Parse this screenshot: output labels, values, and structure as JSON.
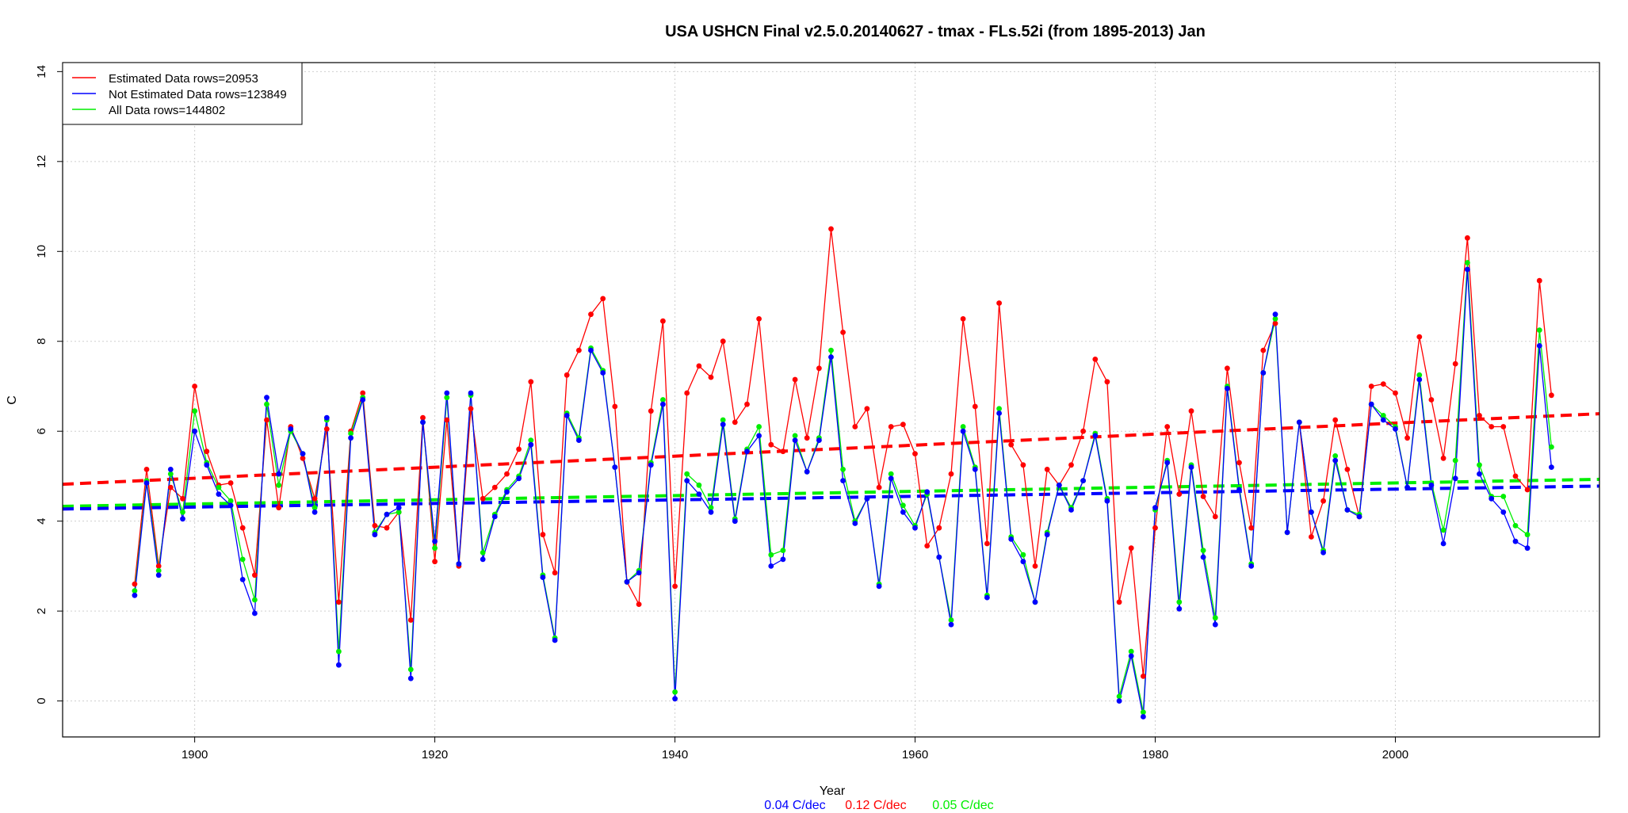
{
  "chart_data": {
    "type": "line",
    "title": "USA USHCN Final v2.5.0.20140627 - tmax - FLs.52i (from 1895-2013) Jan",
    "xlabel": "Year",
    "ylabel": "C",
    "xlim": [
      1889,
      2017
    ],
    "ylim": [
      -0.8,
      14.2
    ],
    "xticks": [
      1900,
      1920,
      1940,
      1960,
      1980,
      2000
    ],
    "yticks": [
      0,
      2,
      4,
      6,
      8,
      10,
      12,
      14
    ],
    "grid": true,
    "legend_position": "top-left",
    "legend": [
      {
        "label": "Estimated Data rows=20953",
        "color": "#ff0000"
      },
      {
        "label": "Not Estimated Data rows=123849",
        "color": "#0000ff"
      },
      {
        "label": "All Data rows=144802",
        "color": "#00ee00"
      }
    ],
    "trend_labels": [
      {
        "text": "0.04 C/dec",
        "color": "#0000ff"
      },
      {
        "text": "0.12 C/dec",
        "color": "#ff0000"
      },
      {
        "text": "0.05 C/dec",
        "color": "#00ee00"
      }
    ],
    "x": [
      1895,
      1896,
      1897,
      1898,
      1899,
      1900,
      1901,
      1902,
      1903,
      1904,
      1905,
      1906,
      1907,
      1908,
      1909,
      1910,
      1911,
      1912,
      1913,
      1914,
      1915,
      1916,
      1917,
      1918,
      1919,
      1920,
      1921,
      1922,
      1923,
      1924,
      1925,
      1926,
      1927,
      1928,
      1929,
      1930,
      1931,
      1932,
      1933,
      1934,
      1935,
      1936,
      1937,
      1938,
      1939,
      1940,
      1941,
      1942,
      1943,
      1944,
      1945,
      1946,
      1947,
      1948,
      1949,
      1950,
      1951,
      1952,
      1953,
      1954,
      1955,
      1956,
      1957,
      1958,
      1959,
      1960,
      1961,
      1962,
      1963,
      1964,
      1965,
      1966,
      1967,
      1968,
      1969,
      1970,
      1971,
      1972,
      1973,
      1974,
      1975,
      1976,
      1977,
      1978,
      1979,
      1980,
      1981,
      1982,
      1983,
      1984,
      1985,
      1986,
      1987,
      1988,
      1989,
      1990,
      1991,
      1992,
      1993,
      1994,
      1995,
      1996,
      1997,
      1998,
      1999,
      2000,
      2001,
      2002,
      2003,
      2004,
      2005,
      2006,
      2007,
      2008,
      2009,
      2010,
      2011,
      2012,
      2013
    ],
    "series": [
      {
        "name": "Estimated",
        "color": "#ff0000",
        "values": [
          2.6,
          5.15,
          3.0,
          4.75,
          4.5,
          7.0,
          5.55,
          4.8,
          4.85,
          3.85,
          2.8,
          6.25,
          4.3,
          6.1,
          5.4,
          4.5,
          6.05,
          2.2,
          6.0,
          6.85,
          3.9,
          3.85,
          4.2,
          1.8,
          6.3,
          3.1,
          6.25,
          3.0,
          6.5,
          4.5,
          4.75,
          5.05,
          5.6,
          7.1,
          3.7,
          2.85,
          7.25,
          7.8,
          8.6,
          8.95,
          6.55,
          2.65,
          2.15,
          6.45,
          8.45,
          2.55,
          6.85,
          7.45,
          7.2,
          8.0,
          6.2,
          6.6,
          8.5,
          5.7,
          5.55,
          7.15,
          5.85,
          7.4,
          10.5,
          8.2,
          6.1,
          6.5,
          4.75,
          6.1,
          6.15,
          5.5,
          3.45,
          3.85,
          5.05,
          8.5,
          6.55,
          3.5,
          8.85,
          5.7,
          5.25,
          3.0,
          5.15,
          4.8,
          5.25,
          6.0,
          7.6,
          7.1,
          2.2,
          3.4,
          0.55,
          3.85,
          6.1,
          4.6,
          6.45,
          4.55,
          4.1,
          7.4,
          5.3,
          3.85,
          7.8,
          8.4,
          null,
          6.2,
          3.65,
          4.45,
          6.25,
          5.15,
          4.1,
          7.0,
          7.05,
          6.85,
          5.85,
          8.1,
          6.7,
          5.4,
          7.5,
          10.3,
          6.35,
          6.1,
          6.1,
          5.0,
          4.7,
          9.35,
          6.8
        ]
      },
      {
        "name": "All",
        "color": "#00ee00",
        "values": [
          2.45,
          4.9,
          2.9,
          5.05,
          4.2,
          6.45,
          5.3,
          4.75,
          4.45,
          3.15,
          2.25,
          6.6,
          4.8,
          6.0,
          5.5,
          4.3,
          6.25,
          1.1,
          5.95,
          6.75,
          3.75,
          4.15,
          4.2,
          0.7,
          6.2,
          3.4,
          6.75,
          3.05,
          6.8,
          3.3,
          4.15,
          4.7,
          5.0,
          5.8,
          2.8,
          1.4,
          6.4,
          5.85,
          7.85,
          7.35,
          5.2,
          2.65,
          2.9,
          5.3,
          6.7,
          0.2,
          5.05,
          4.8,
          4.3,
          6.25,
          4.05,
          5.6,
          6.1,
          3.25,
          3.35,
          5.9,
          5.1,
          5.85,
          7.8,
          5.15,
          4.0,
          4.5,
          2.6,
          5.05,
          4.35,
          3.9,
          4.6,
          3.2,
          1.8,
          6.1,
          5.2,
          2.35,
          6.5,
          3.65,
          3.25,
          2.2,
          3.75,
          4.8,
          4.3,
          4.9,
          5.95,
          4.5,
          0.1,
          1.1,
          -0.25,
          4.25,
          5.35,
          2.2,
          5.25,
          3.35,
          1.85,
          7.0,
          4.75,
          3.05,
          7.3,
          8.5,
          3.75,
          6.2,
          4.2,
          3.35,
          5.45,
          4.25,
          4.15,
          6.6,
          6.35,
          6.1,
          4.75,
          7.25,
          4.85,
          3.8,
          5.35,
          9.75,
          5.25,
          4.55,
          4.55,
          3.9,
          3.7,
          8.25,
          5.65
        ]
      },
      {
        "name": "Not Estimated",
        "color": "#0000ff",
        "values": [
          2.35,
          4.85,
          2.8,
          5.15,
          4.05,
          6.0,
          5.25,
          4.6,
          4.35,
          2.7,
          1.95,
          6.75,
          5.05,
          6.05,
          5.5,
          4.2,
          6.3,
          0.8,
          5.85,
          6.7,
          3.7,
          4.15,
          4.3,
          0.5,
          6.2,
          3.55,
          6.85,
          3.05,
          6.85,
          3.15,
          4.1,
          4.65,
          4.95,
          5.7,
          2.75,
          1.35,
          6.35,
          5.8,
          7.8,
          7.3,
          5.2,
          2.65,
          2.85,
          5.25,
          6.6,
          0.05,
          4.9,
          4.6,
          4.2,
          6.15,
          4.0,
          5.55,
          5.9,
          3.0,
          3.15,
          5.8,
          5.1,
          5.8,
          7.65,
          4.9,
          3.95,
          4.5,
          2.55,
          4.95,
          4.2,
          3.85,
          4.65,
          3.2,
          1.7,
          6.0,
          5.15,
          2.3,
          6.4,
          3.6,
          3.1,
          2.2,
          3.7,
          4.8,
          4.25,
          4.9,
          5.9,
          4.45,
          0.0,
          1.0,
          -0.35,
          4.3,
          5.3,
          2.05,
          5.2,
          3.2,
          1.7,
          6.95,
          4.7,
          3.0,
          7.3,
          8.6,
          3.75,
          6.2,
          4.2,
          3.3,
          5.35,
          4.25,
          4.1,
          6.6,
          6.25,
          6.05,
          4.75,
          7.15,
          4.8,
          3.5,
          4.95,
          9.6,
          5.05,
          4.5,
          4.2,
          3.55,
          3.4,
          7.9,
          5.2
        ]
      }
    ],
    "trend_lines": [
      {
        "name": "Estimated trend",
        "color": "#ff0000",
        "x": [
          1889,
          2017
        ],
        "y": [
          4.82,
          6.39
        ]
      },
      {
        "name": "All trend",
        "color": "#00ee00",
        "x": [
          1889,
          2017
        ],
        "y": [
          4.33,
          4.93
        ]
      },
      {
        "name": "Not Estimated trend",
        "color": "#0000ff",
        "x": [
          1889,
          2017
        ],
        "y": [
          4.27,
          4.78
        ]
      }
    ]
  }
}
